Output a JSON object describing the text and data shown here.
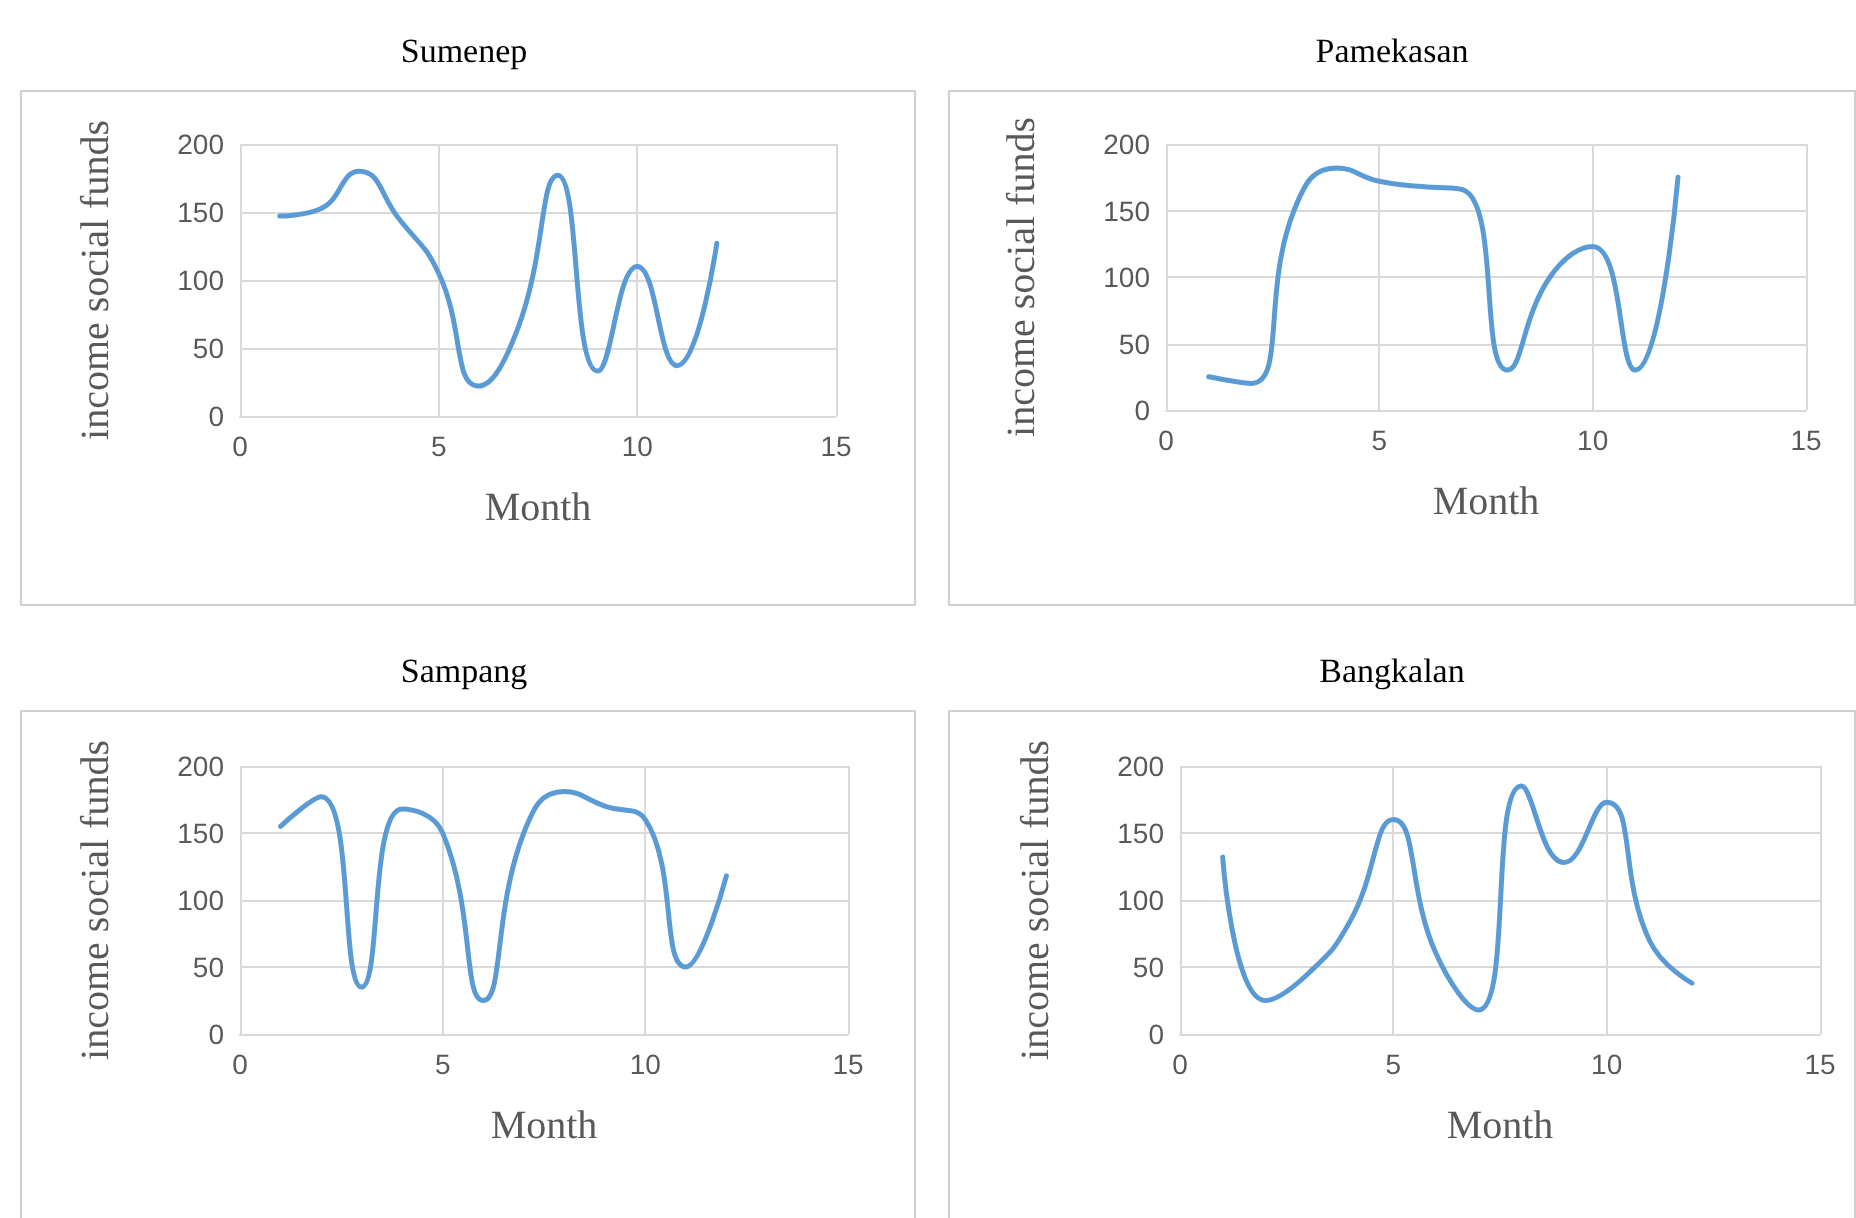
{
  "chart_data": [
    {
      "type": "line",
      "title": "Sumenep",
      "xlabel": "Month",
      "ylabel": "income social funds",
      "x": [
        1,
        2,
        3,
        4,
        5,
        6,
        7,
        8,
        9,
        10,
        11,
        12
      ],
      "series": [
        {
          "color": "#5b9bd5",
          "values": [
            147,
            152,
            180,
            145,
            105,
            22,
            65,
            177,
            33,
            110,
            37,
            127
          ]
        }
      ],
      "xlim": [
        0,
        15
      ],
      "xticks": [
        0,
        5,
        10,
        15
      ],
      "ylim": [
        0,
        200
      ],
      "yticks": [
        0,
        50,
        100,
        150,
        200
      ],
      "grid": true
    },
    {
      "type": "line",
      "title": "Pamekasan",
      "xlabel": "Month",
      "ylabel": "income social funds",
      "x": [
        1,
        2,
        3,
        4,
        5,
        6,
        7,
        8,
        9,
        10,
        11,
        12
      ],
      "series": [
        {
          "color": "#5b9bd5",
          "values": [
            25,
            20,
            150,
            182,
            172,
            168,
            165,
            30,
            100,
            123,
            30,
            175
          ]
        }
      ],
      "xlim": [
        0,
        15
      ],
      "xticks": [
        0,
        5,
        10,
        15
      ],
      "ylim": [
        0,
        200
      ],
      "yticks": [
        0,
        50,
        100,
        150,
        200
      ],
      "grid": true
    },
    {
      "type": "line",
      "title": "Sampang",
      "xlabel": "Month",
      "ylabel": "income social funds",
      "x": [
        1,
        2,
        3,
        4,
        5,
        6,
        7,
        8,
        9,
        10,
        11,
        12
      ],
      "series": [
        {
          "color": "#5b9bd5",
          "values": [
            155,
            177,
            35,
            168,
            150,
            25,
            150,
            181,
            170,
            160,
            50,
            118
          ]
        }
      ],
      "xlim": [
        0,
        15
      ],
      "xticks": [
        0,
        5,
        10,
        15
      ],
      "ylim": [
        0,
        200
      ],
      "yticks": [
        0,
        50,
        100,
        150,
        200
      ],
      "grid": true
    },
    {
      "type": "line",
      "title": "Bangkalan",
      "xlabel": "Month",
      "ylabel": "income social funds",
      "x": [
        1,
        2,
        3,
        4,
        5,
        6,
        7,
        8,
        9,
        10,
        11,
        12
      ],
      "series": [
        {
          "color": "#5b9bd5",
          "values": [
            132,
            25,
            45,
            85,
            160,
            60,
            18,
            185,
            128,
            173,
            70,
            38
          ]
        }
      ],
      "xlim": [
        0,
        15
      ],
      "xticks": [
        0,
        5,
        10,
        15
      ],
      "ylim": [
        0,
        200
      ],
      "yticks": [
        0,
        50,
        100,
        150,
        200
      ],
      "grid": true
    }
  ]
}
